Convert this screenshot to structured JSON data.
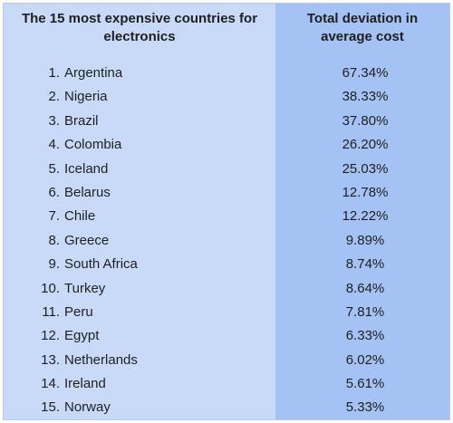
{
  "header": {
    "country_col": "The 15 most expensive countries for electronics",
    "value_col": "Total deviation in average cost"
  },
  "colors": {
    "left_column_bg": "#c9daf8",
    "right_column_bg": "#a4c2f4"
  },
  "chart_data": {
    "type": "table",
    "columns": [
      "The 15 most expensive countries for electronics",
      "Total deviation in average cost"
    ],
    "rows": [
      {
        "rank": "1.",
        "country": "Argentina",
        "value": "67.34%"
      },
      {
        "rank": "2.",
        "country": "Nigeria",
        "value": "38.33%"
      },
      {
        "rank": "3.",
        "country": "Brazil",
        "value": "37.80%"
      },
      {
        "rank": "4.",
        "country": "Colombia",
        "value": "26.20%"
      },
      {
        "rank": "5.",
        "country": "Iceland",
        "value": "25.03%"
      },
      {
        "rank": "6.",
        "country": "Belarus",
        "value": "12.78%"
      },
      {
        "rank": "7.",
        "country": "Chile",
        "value": "12.22%"
      },
      {
        "rank": "8.",
        "country": "Greece",
        "value": "9.89%"
      },
      {
        "rank": "9.",
        "country": "South Africa",
        "value": "8.74%"
      },
      {
        "rank": "10.",
        "country": "Turkey",
        "value": "8.64%"
      },
      {
        "rank": "11.",
        "country": "Peru",
        "value": "7.81%"
      },
      {
        "rank": "12.",
        "country": "Egypt",
        "value": "6.33%"
      },
      {
        "rank": "13.",
        "country": "Netherlands",
        "value": "6.02%"
      },
      {
        "rank": "14.",
        "country": "Ireland",
        "value": "5.61%"
      },
      {
        "rank": "15.",
        "country": "Norway",
        "value": "5.33%"
      }
    ]
  }
}
